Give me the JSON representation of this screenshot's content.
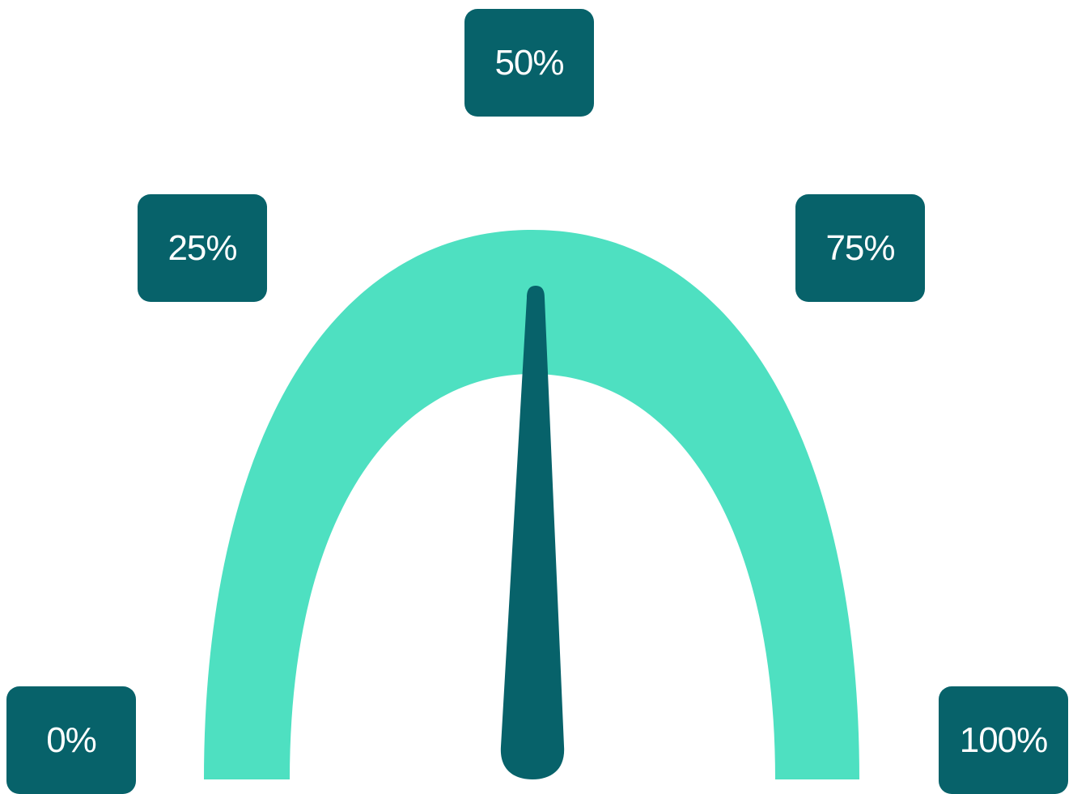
{
  "chart_data": {
    "type": "gauge",
    "value_percent": 50,
    "range": [
      0,
      100
    ],
    "tick_labels": [
      "0%",
      "25%",
      "50%",
      "75%",
      "100%"
    ],
    "tick_values": [
      0,
      25,
      50,
      75,
      100
    ]
  },
  "colors": {
    "arc": "#4ee0c1",
    "needle": "#07626a",
    "label_bg": "#07626a",
    "label_text": "#ffffff",
    "background": "#ffffff"
  }
}
